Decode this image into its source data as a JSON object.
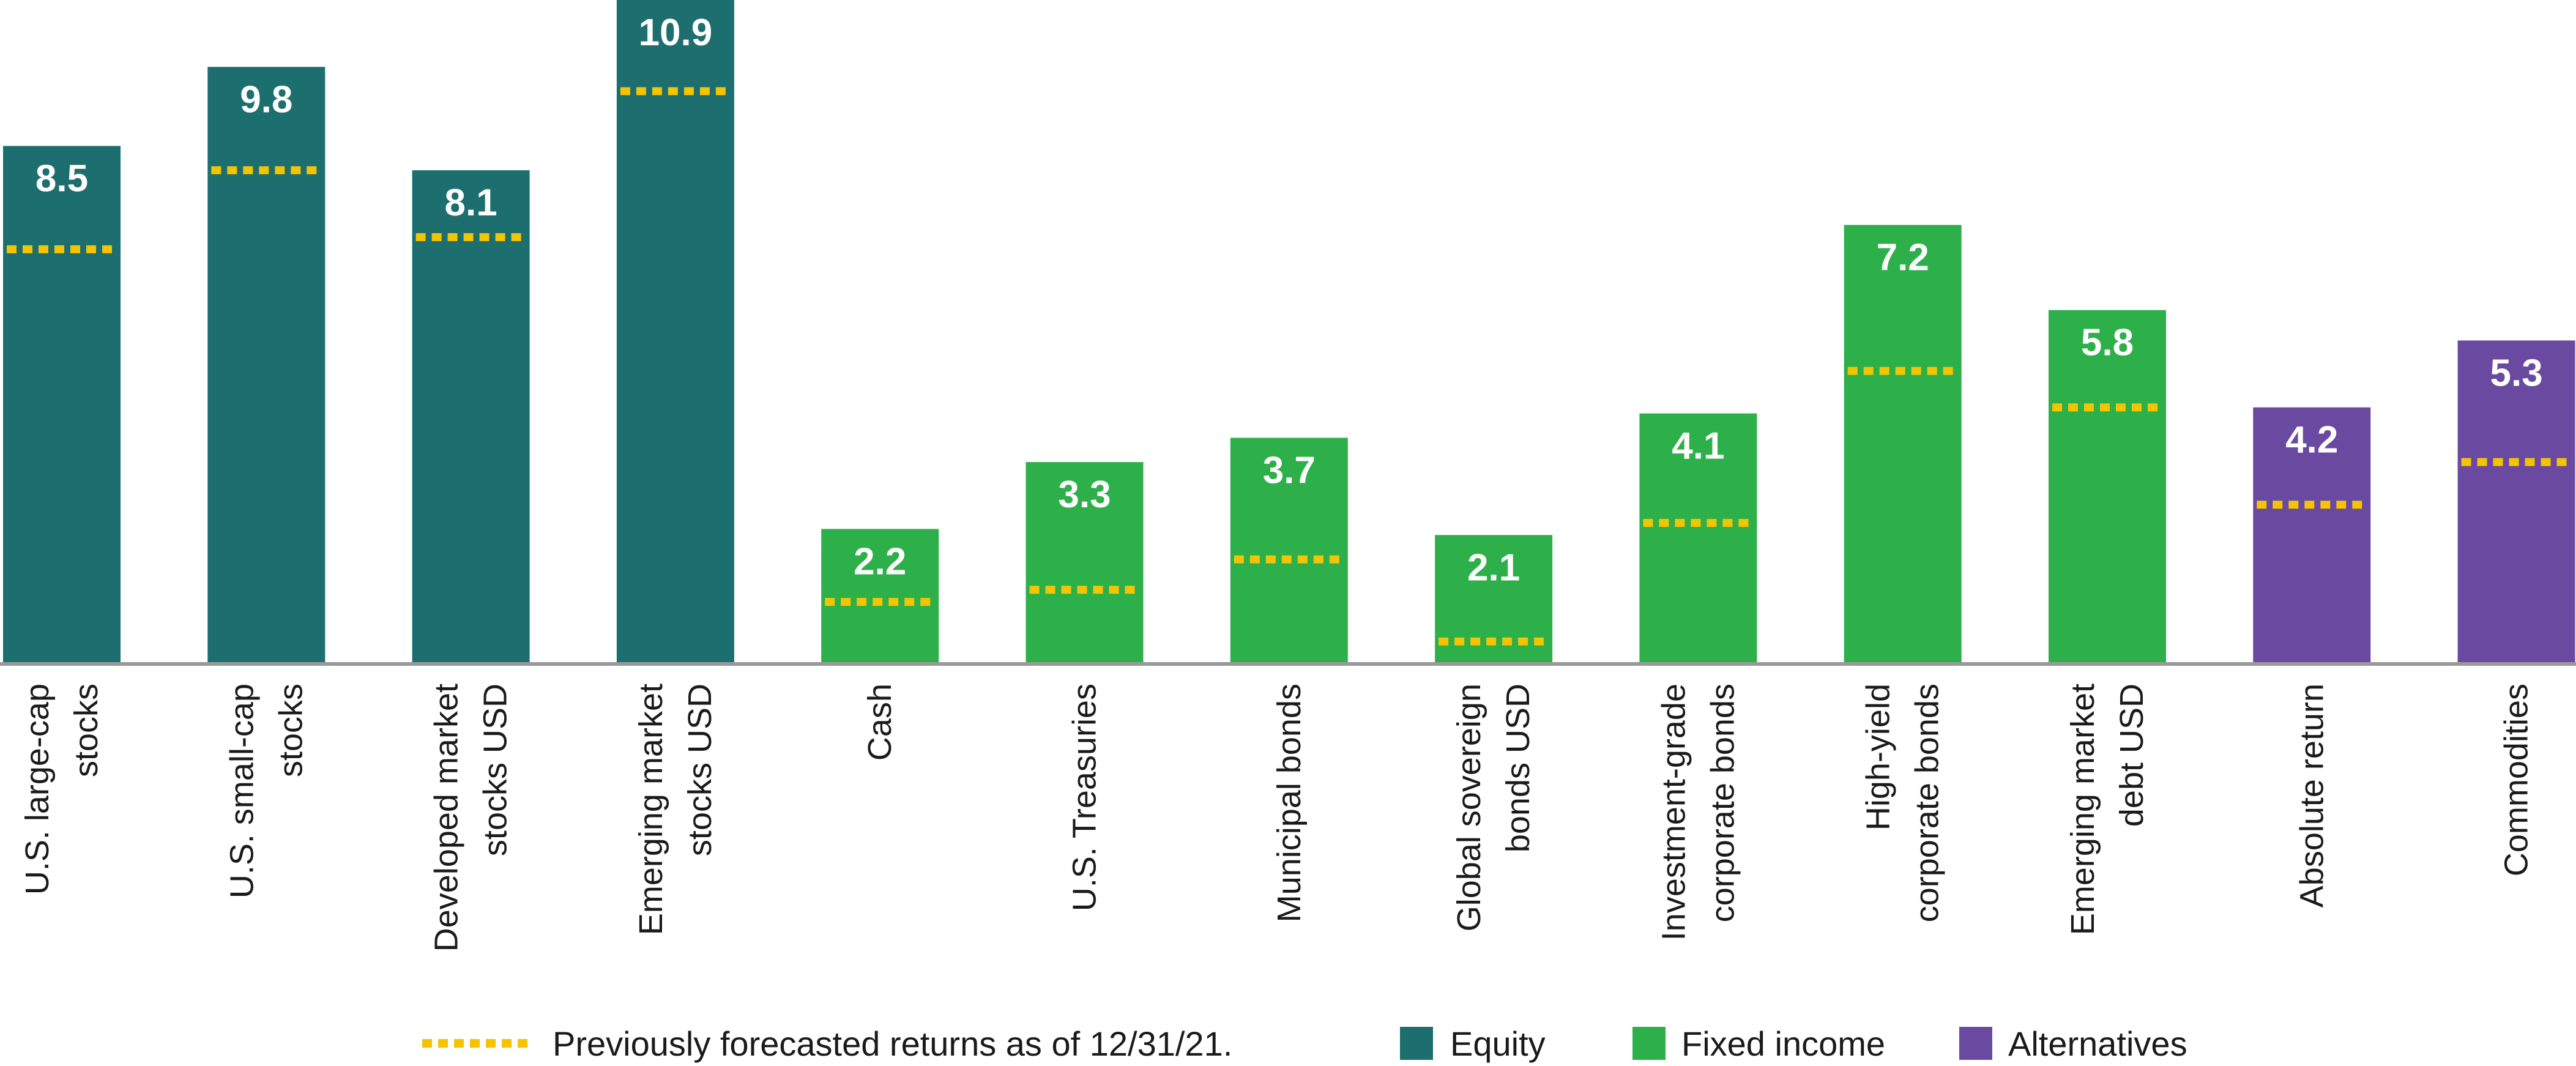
{
  "colors": {
    "equity": "#1d6e6e",
    "fixed_income": "#2db04a",
    "alternatives": "#6a4aa0",
    "previous_forecast": "#f5c400",
    "axis": "#999999"
  },
  "legend": {
    "previous_label": "Previously forecasted returns as of 12/31/21.",
    "equity_label": "Equity",
    "fixed_income_label": "Fixed income",
    "alternatives_label": "Alternatives"
  },
  "chart_data": {
    "type": "bar",
    "title": "",
    "xlabel": "",
    "ylabel": "",
    "ylim": [
      0,
      10.9
    ],
    "grid": false,
    "legend_position": "bottom",
    "categories": [
      [
        "U.S. large-cap",
        "stocks"
      ],
      [
        "U.S. small-cap",
        "stocks"
      ],
      [
        "Developed market",
        "stocks USD"
      ],
      [
        "Emerging market",
        "stocks USD"
      ],
      [
        "Cash"
      ],
      [
        "U.S. Treasuries"
      ],
      [
        "Municipal bonds"
      ],
      [
        "Global sovereign",
        "bonds USD"
      ],
      [
        "Investment-grade",
        "corporate bonds"
      ],
      [
        "High-yield",
        "corporate bonds"
      ],
      [
        "Emerging market",
        "debt USD"
      ],
      [
        "Absolute return"
      ],
      [
        "Commodities"
      ]
    ],
    "groups": [
      "equity",
      "equity",
      "equity",
      "equity",
      "fixed_income",
      "fixed_income",
      "fixed_income",
      "fixed_income",
      "fixed_income",
      "fixed_income",
      "fixed_income",
      "alternatives",
      "alternatives"
    ],
    "series": [
      {
        "name": "Forecasted returns",
        "values": [
          8.5,
          9.8,
          8.1,
          10.9,
          2.2,
          3.3,
          3.7,
          2.1,
          4.1,
          7.2,
          5.8,
          4.2,
          5.3
        ],
        "labels": [
          "8.5",
          "9.8",
          "8.1",
          "10.9",
          "2.2",
          "3.3",
          "3.7",
          "2.1",
          "4.1",
          "7.2",
          "5.8",
          "4.2",
          "5.3"
        ]
      },
      {
        "name": "Previously forecasted returns as of 12/31/21.",
        "values": [
          6.8,
          8.1,
          7.0,
          9.4,
          1.0,
          1.2,
          1.7,
          0.35,
          2.3,
          4.8,
          4.2,
          2.6,
          3.3
        ]
      }
    ]
  }
}
